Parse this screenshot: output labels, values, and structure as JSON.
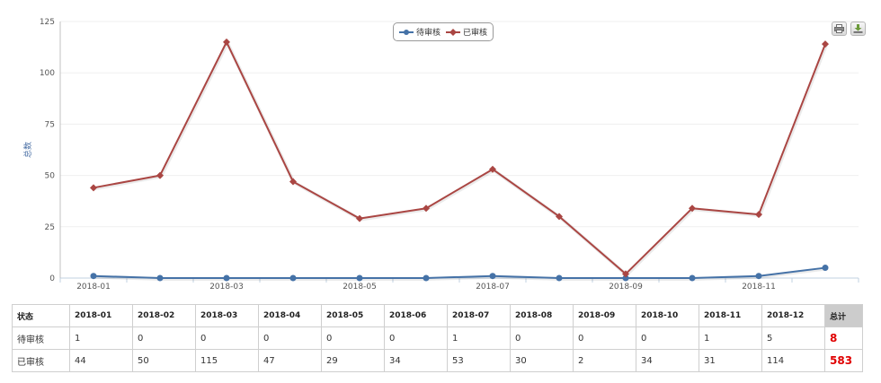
{
  "chart_data": {
    "type": "line",
    "ylabel": "总数",
    "ylim": [
      0,
      125
    ],
    "yticks": [
      0,
      25,
      50,
      75,
      100,
      125
    ],
    "categories": [
      "2018-01",
      "2018-02",
      "2018-03",
      "2018-04",
      "2018-05",
      "2018-06",
      "2018-07",
      "2018-08",
      "2018-09",
      "2018-10",
      "2018-11",
      "2018-12"
    ],
    "x_tick_labels": [
      "2018-01",
      "2018-03",
      "2018-05",
      "2018-07",
      "2018-09",
      "2018-11"
    ],
    "legend_position": "top-center",
    "grid": "horizontal",
    "series": [
      {
        "name": "待审核",
        "color": "#4572a7",
        "marker": "circle",
        "values": [
          1,
          0,
          0,
          0,
          0,
          0,
          1,
          0,
          0,
          0,
          1,
          5
        ]
      },
      {
        "name": "已审核",
        "color": "#aa4643",
        "marker": "diamond",
        "values": [
          44,
          50,
          115,
          47,
          29,
          34,
          53,
          30,
          2,
          34,
          31,
          114
        ]
      }
    ]
  },
  "toolbar": {
    "print_icon": "print-icon",
    "export_icon": "download-icon"
  },
  "table": {
    "header": [
      "状态",
      "2018-01",
      "2018-02",
      "2018-03",
      "2018-04",
      "2018-05",
      "2018-06",
      "2018-07",
      "2018-08",
      "2018-09",
      "2018-10",
      "2018-11",
      "2018-12",
      "总计"
    ],
    "rows": [
      [
        "待审核",
        "1",
        "0",
        "0",
        "0",
        "0",
        "0",
        "1",
        "0",
        "0",
        "0",
        "1",
        "5",
        "8"
      ],
      [
        "已审核",
        "44",
        "50",
        "115",
        "47",
        "29",
        "34",
        "53",
        "30",
        "2",
        "34",
        "31",
        "114",
        "583"
      ]
    ]
  }
}
